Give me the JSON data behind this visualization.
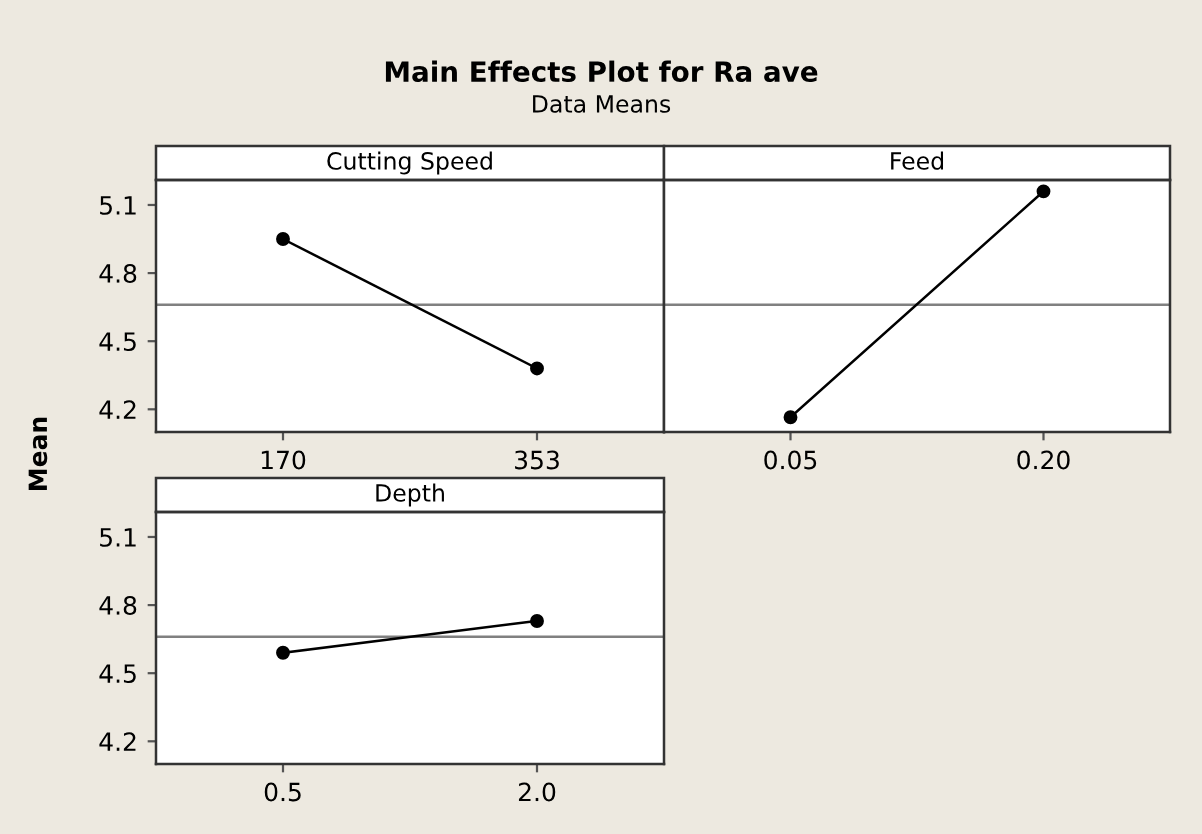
{
  "chart_data": [
    {
      "type": "line",
      "title": "Cutting Speed",
      "ylabel": "Mean",
      "annotations": [
        "Main Effects Plot for Ra ave",
        "Data Means"
      ],
      "categories": [
        "170",
        "353"
      ],
      "series": [
        {
          "color": "#000000",
          "values": [
            4.95,
            4.38
          ]
        }
      ],
      "ylim": [
        4.1,
        5.21
      ],
      "yticks": [
        4.2,
        4.5,
        4.8,
        5.1
      ],
      "ref_lines": [
        {
          "axis": "y",
          "value": 4.66,
          "color": "#808080"
        }
      ],
      "marker": "circle",
      "grid": false,
      "legend": false
    },
    {
      "type": "line",
      "title": "Feed",
      "categories": [
        "0.05",
        "0.20"
      ],
      "series": [
        {
          "color": "#000000",
          "values": [
            4.165,
            5.16
          ]
        }
      ],
      "ylim": [
        4.1,
        5.21
      ],
      "yticks": [
        4.2,
        4.5,
        4.8,
        5.1
      ],
      "ref_lines": [
        {
          "axis": "y",
          "value": 4.66,
          "color": "#808080"
        }
      ],
      "marker": "circle",
      "grid": false,
      "legend": false,
      "tick_labels": "x"
    },
    {
      "type": "line",
      "title": "Depth",
      "categories": [
        "0.5",
        "2.0"
      ],
      "series": [
        {
          "color": "#000000",
          "values": [
            4.59,
            4.73
          ]
        }
      ],
      "ylim": [
        4.1,
        5.21
      ],
      "yticks": [
        4.2,
        4.5,
        4.8,
        5.1
      ],
      "ref_lines": [
        {
          "axis": "y",
          "value": 4.66,
          "color": "#808080"
        }
      ],
      "marker": "circle",
      "grid": false,
      "legend": false
    }
  ]
}
